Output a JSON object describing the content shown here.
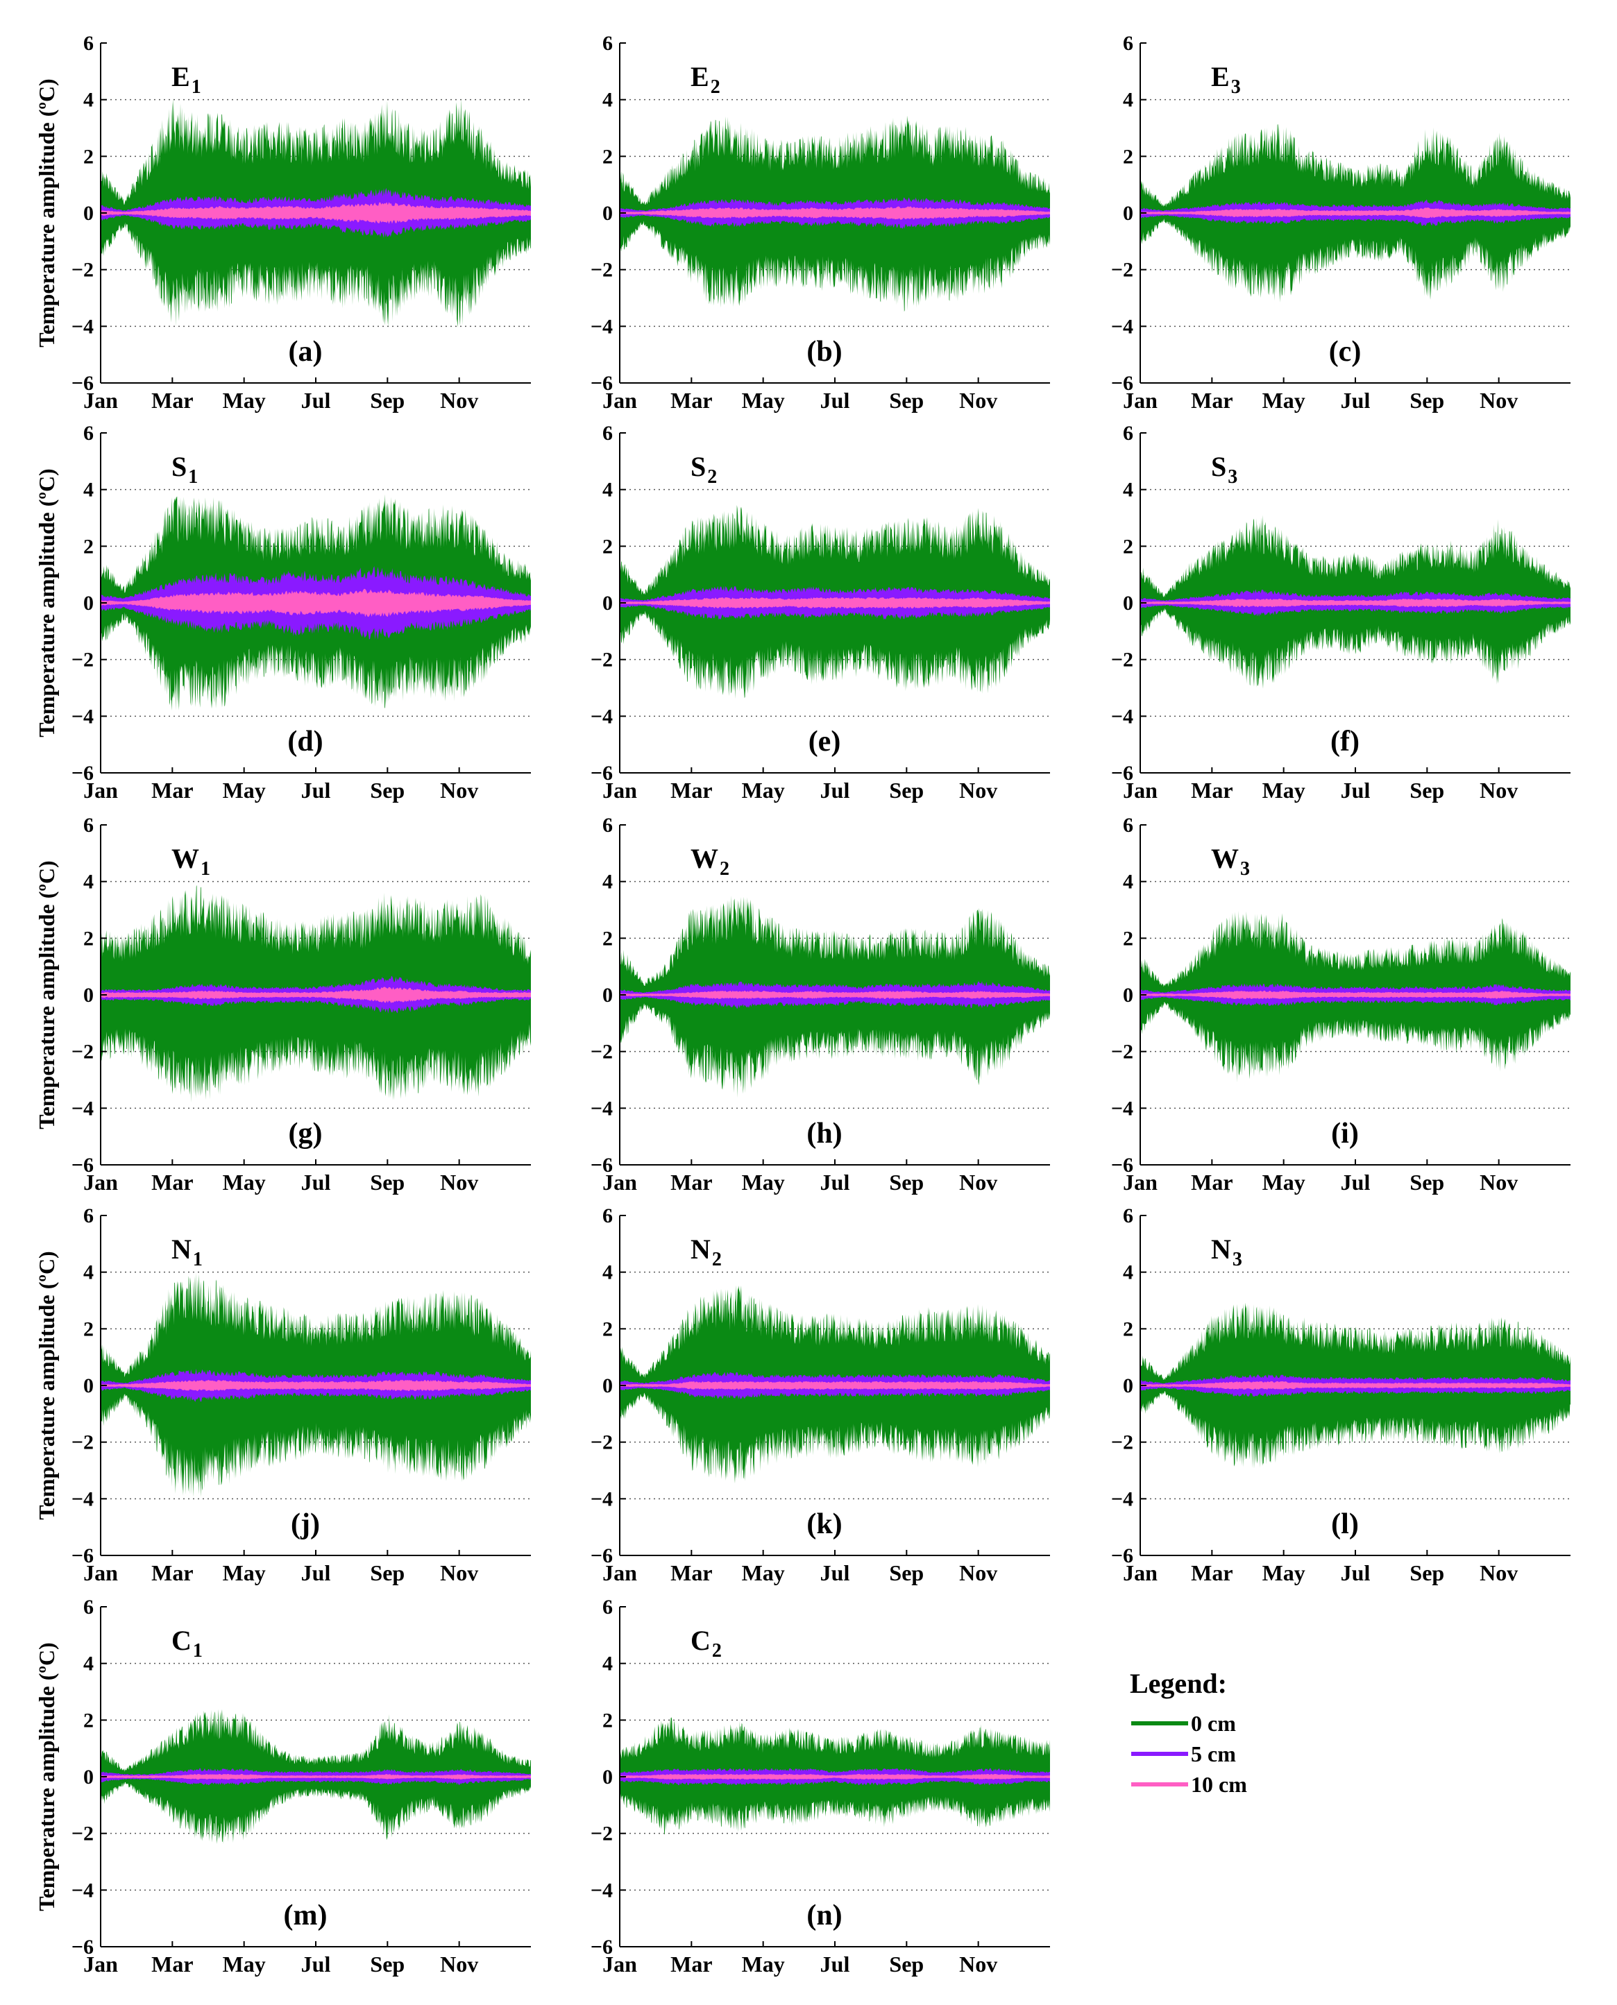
{
  "chart_data": {
    "type": "area",
    "shared": {
      "ylabel": "Temperature amplitude (ºC)",
      "ylim": [
        -6,
        6
      ],
      "yticks": [
        "−6",
        "−4",
        "−2",
        "0",
        "2",
        "4",
        "6"
      ],
      "months": [
        "Jan",
        "Mar",
        "May",
        "Jul",
        "Sep",
        "Nov"
      ],
      "series_names": [
        "0 cm",
        "5 cm",
        "10 cm"
      ],
      "colors": {
        "0 cm": "#0a8a14",
        "5 cm": "#8a1aff",
        "10 cm": "#ff5ec4"
      }
    },
    "legend": {
      "title": "Legend:",
      "items": [
        {
          "label": "0 cm",
          "color": "#0a8a14"
        },
        {
          "label": "5 cm",
          "color": "#8a1aff"
        },
        {
          "label": "10 cm",
          "color": "#ff5ec4"
        }
      ]
    },
    "panels": [
      {
        "id": "(a)",
        "station": "E",
        "sub": "1",
        "env0": [
          1.7,
          0.5,
          2.2,
          4.1,
          3.5,
          3.6,
          3.0,
          3.3,
          3.2,
          3.0,
          3.4,
          3.2,
          4.1,
          3.1,
          3.0,
          4.2,
          2.9,
          1.8,
          1.5
        ],
        "env5": [
          0.3,
          0.1,
          0.3,
          0.6,
          0.6,
          0.6,
          0.5,
          0.6,
          0.6,
          0.5,
          0.7,
          0.8,
          0.9,
          0.7,
          0.6,
          0.6,
          0.5,
          0.4,
          0.3
        ],
        "env10": [
          0.1,
          0.05,
          0.1,
          0.2,
          0.2,
          0.25,
          0.2,
          0.25,
          0.25,
          0.2,
          0.3,
          0.35,
          0.4,
          0.3,
          0.25,
          0.25,
          0.2,
          0.15,
          0.1
        ]
      },
      {
        "id": "(b)",
        "station": "E",
        "sub": "2",
        "env0": [
          1.6,
          0.4,
          1.5,
          2.5,
          3.5,
          3.3,
          2.7,
          2.6,
          2.8,
          2.7,
          3.0,
          3.2,
          3.6,
          3.0,
          3.2,
          2.9,
          2.7,
          1.5,
          1.2
        ],
        "env5": [
          0.2,
          0.1,
          0.2,
          0.4,
          0.5,
          0.5,
          0.4,
          0.4,
          0.5,
          0.4,
          0.5,
          0.5,
          0.6,
          0.5,
          0.5,
          0.4,
          0.4,
          0.3,
          0.2
        ],
        "env10": [
          0.05,
          0.05,
          0.1,
          0.15,
          0.2,
          0.2,
          0.15,
          0.15,
          0.2,
          0.15,
          0.2,
          0.2,
          0.25,
          0.2,
          0.2,
          0.15,
          0.15,
          0.1,
          0.05
        ]
      },
      {
        "id": "(c)",
        "station": "E",
        "sub": "3",
        "env0": [
          1.3,
          0.3,
          1.2,
          2.1,
          2.9,
          3.0,
          3.2,
          2.3,
          1.9,
          1.6,
          1.8,
          1.5,
          3.2,
          2.7,
          1.5,
          3.0,
          1.9,
          1.2,
          0.8
        ],
        "env5": [
          0.2,
          0.1,
          0.2,
          0.3,
          0.4,
          0.4,
          0.4,
          0.3,
          0.3,
          0.3,
          0.3,
          0.3,
          0.5,
          0.4,
          0.3,
          0.4,
          0.3,
          0.2,
          0.2
        ],
        "env10": [
          0.05,
          0.05,
          0.05,
          0.1,
          0.15,
          0.15,
          0.15,
          0.1,
          0.1,
          0.1,
          0.1,
          0.1,
          0.2,
          0.15,
          0.1,
          0.15,
          0.1,
          0.05,
          0.05
        ]
      },
      {
        "id": "(d)",
        "station": "S",
        "sub": "1",
        "env0": [
          1.6,
          0.6,
          2.0,
          3.9,
          3.7,
          3.8,
          3.0,
          2.6,
          2.7,
          3.2,
          2.8,
          3.5,
          3.9,
          3.3,
          3.5,
          3.5,
          2.8,
          1.7,
          1.3
        ],
        "env5": [
          0.3,
          0.2,
          0.5,
          0.8,
          1.0,
          1.1,
          1.0,
          0.9,
          1.2,
          1.1,
          1.0,
          1.3,
          1.3,
          1.0,
          1.0,
          0.9,
          0.7,
          0.5,
          0.3
        ],
        "env10": [
          0.1,
          0.05,
          0.15,
          0.3,
          0.35,
          0.4,
          0.4,
          0.35,
          0.45,
          0.4,
          0.35,
          0.5,
          0.5,
          0.4,
          0.35,
          0.3,
          0.25,
          0.15,
          0.1
        ]
      },
      {
        "id": "(e)",
        "station": "S",
        "sub": "2",
        "env0": [
          1.7,
          0.4,
          1.6,
          3.1,
          3.2,
          3.5,
          2.9,
          2.4,
          2.9,
          2.8,
          2.6,
          2.8,
          3.2,
          3.0,
          2.7,
          3.5,
          2.9,
          1.5,
          1.0
        ],
        "env5": [
          0.2,
          0.1,
          0.3,
          0.5,
          0.6,
          0.6,
          0.5,
          0.5,
          0.6,
          0.5,
          0.5,
          0.6,
          0.6,
          0.5,
          0.5,
          0.5,
          0.4,
          0.3,
          0.2
        ],
        "env10": [
          0.05,
          0.05,
          0.1,
          0.15,
          0.2,
          0.2,
          0.2,
          0.15,
          0.2,
          0.2,
          0.2,
          0.2,
          0.2,
          0.2,
          0.15,
          0.2,
          0.15,
          0.1,
          0.05
        ]
      },
      {
        "id": "(f)",
        "station": "S",
        "sub": "3",
        "env0": [
          1.4,
          0.3,
          1.4,
          2.1,
          2.6,
          3.2,
          2.6,
          1.8,
          1.6,
          1.9,
          1.4,
          1.9,
          2.2,
          2.2,
          1.9,
          3.0,
          2.2,
          1.3,
          0.8
        ],
        "env5": [
          0.2,
          0.1,
          0.2,
          0.3,
          0.4,
          0.5,
          0.4,
          0.3,
          0.3,
          0.3,
          0.3,
          0.4,
          0.4,
          0.4,
          0.3,
          0.4,
          0.3,
          0.2,
          0.2
        ],
        "env10": [
          0.05,
          0.05,
          0.05,
          0.1,
          0.15,
          0.15,
          0.15,
          0.1,
          0.1,
          0.1,
          0.1,
          0.15,
          0.15,
          0.15,
          0.1,
          0.15,
          0.1,
          0.05,
          0.05
        ]
      },
      {
        "id": "(g)",
        "station": "W",
        "sub": "1",
        "env0": [
          2.4,
          2.1,
          2.7,
          3.5,
          3.9,
          3.6,
          3.2,
          2.9,
          2.6,
          2.7,
          3.0,
          2.9,
          3.8,
          3.6,
          3.2,
          3.6,
          3.6,
          2.7,
          1.8
        ],
        "env5": [
          0.2,
          0.2,
          0.2,
          0.3,
          0.4,
          0.4,
          0.3,
          0.3,
          0.3,
          0.3,
          0.4,
          0.5,
          0.7,
          0.6,
          0.4,
          0.4,
          0.3,
          0.2,
          0.2
        ],
        "env10": [
          0.1,
          0.1,
          0.1,
          0.1,
          0.15,
          0.15,
          0.1,
          0.1,
          0.1,
          0.1,
          0.15,
          0.2,
          0.3,
          0.25,
          0.15,
          0.15,
          0.1,
          0.1,
          0.1
        ]
      },
      {
        "id": "(h)",
        "station": "W",
        "sub": "2",
        "env0": [
          1.9,
          0.5,
          1.2,
          3.1,
          3.2,
          3.7,
          3.0,
          2.4,
          2.3,
          2.3,
          2.1,
          2.2,
          2.4,
          2.3,
          2.2,
          3.2,
          2.7,
          1.5,
          1.0
        ],
        "env5": [
          0.2,
          0.1,
          0.2,
          0.4,
          0.4,
          0.5,
          0.4,
          0.4,
          0.4,
          0.4,
          0.3,
          0.4,
          0.4,
          0.4,
          0.4,
          0.5,
          0.4,
          0.3,
          0.2
        ],
        "env10": [
          0.05,
          0.05,
          0.05,
          0.1,
          0.15,
          0.15,
          0.15,
          0.1,
          0.15,
          0.1,
          0.1,
          0.15,
          0.15,
          0.1,
          0.1,
          0.15,
          0.1,
          0.1,
          0.05
        ]
      },
      {
        "id": "(i)",
        "station": "W",
        "sub": "3",
        "env0": [
          1.5,
          0.4,
          1.1,
          2.3,
          3.1,
          2.9,
          2.9,
          1.8,
          1.6,
          1.5,
          1.7,
          1.7,
          1.9,
          2.1,
          1.9,
          2.8,
          2.3,
          1.4,
          0.9
        ],
        "env5": [
          0.2,
          0.1,
          0.2,
          0.3,
          0.4,
          0.4,
          0.4,
          0.3,
          0.3,
          0.3,
          0.3,
          0.3,
          0.3,
          0.3,
          0.3,
          0.4,
          0.3,
          0.2,
          0.2
        ],
        "env10": [
          0.05,
          0.05,
          0.05,
          0.1,
          0.15,
          0.15,
          0.15,
          0.1,
          0.1,
          0.1,
          0.1,
          0.1,
          0.1,
          0.1,
          0.1,
          0.15,
          0.1,
          0.05,
          0.05
        ]
      },
      {
        "id": "(j)",
        "station": "N",
        "sub": "1",
        "env0": [
          1.6,
          0.5,
          1.6,
          3.8,
          4.0,
          3.7,
          3.2,
          2.9,
          2.7,
          2.4,
          2.6,
          2.6,
          3.1,
          3.2,
          3.3,
          3.5,
          3.0,
          2.2,
          1.4
        ],
        "env5": [
          0.2,
          0.1,
          0.3,
          0.5,
          0.6,
          0.5,
          0.5,
          0.4,
          0.4,
          0.4,
          0.4,
          0.4,
          0.5,
          0.5,
          0.5,
          0.4,
          0.4,
          0.3,
          0.2
        ],
        "env10": [
          0.05,
          0.05,
          0.1,
          0.15,
          0.2,
          0.2,
          0.15,
          0.15,
          0.15,
          0.15,
          0.15,
          0.15,
          0.2,
          0.2,
          0.2,
          0.15,
          0.15,
          0.1,
          0.05
        ]
      },
      {
        "id": "(k)",
        "station": "N",
        "sub": "2",
        "env0": [
          1.5,
          0.4,
          1.5,
          3.0,
          3.4,
          3.6,
          3.0,
          2.7,
          2.5,
          2.6,
          2.4,
          2.3,
          2.6,
          2.8,
          2.7,
          2.9,
          2.6,
          2.0,
          1.2
        ],
        "env5": [
          0.2,
          0.1,
          0.2,
          0.4,
          0.5,
          0.5,
          0.4,
          0.4,
          0.4,
          0.4,
          0.4,
          0.4,
          0.4,
          0.4,
          0.4,
          0.4,
          0.4,
          0.3,
          0.2
        ],
        "env10": [
          0.05,
          0.05,
          0.05,
          0.15,
          0.15,
          0.15,
          0.15,
          0.15,
          0.15,
          0.15,
          0.15,
          0.15,
          0.15,
          0.15,
          0.15,
          0.15,
          0.15,
          0.1,
          0.05
        ]
      },
      {
        "id": "(l)",
        "station": "N",
        "sub": "3",
        "env0": [
          1.2,
          0.3,
          1.3,
          2.5,
          2.9,
          3.0,
          2.6,
          2.4,
          2.2,
          2.1,
          2.0,
          2.0,
          2.1,
          2.3,
          2.2,
          2.5,
          2.2,
          1.8,
          1.1
        ],
        "env5": [
          0.2,
          0.1,
          0.2,
          0.3,
          0.4,
          0.4,
          0.4,
          0.3,
          0.3,
          0.3,
          0.3,
          0.3,
          0.3,
          0.3,
          0.3,
          0.3,
          0.3,
          0.3,
          0.2
        ],
        "env10": [
          0.05,
          0.05,
          0.05,
          0.1,
          0.15,
          0.15,
          0.15,
          0.1,
          0.1,
          0.1,
          0.1,
          0.1,
          0.1,
          0.1,
          0.1,
          0.1,
          0.1,
          0.1,
          0.05
        ]
      },
      {
        "id": "(m)",
        "station": "C",
        "sub": "1",
        "env0": [
          1.1,
          0.3,
          0.9,
          1.6,
          2.3,
          2.4,
          2.3,
          1.3,
          0.8,
          0.7,
          0.8,
          0.9,
          2.3,
          1.5,
          1.2,
          2.0,
          1.6,
          0.8,
          0.6
        ],
        "env5": [
          0.2,
          0.1,
          0.1,
          0.2,
          0.3,
          0.3,
          0.3,
          0.2,
          0.2,
          0.2,
          0.2,
          0.2,
          0.3,
          0.2,
          0.2,
          0.3,
          0.2,
          0.2,
          0.1
        ],
        "env10": [
          0.05,
          0.05,
          0.05,
          0.05,
          0.1,
          0.1,
          0.1,
          0.05,
          0.05,
          0.05,
          0.05,
          0.05,
          0.1,
          0.05,
          0.05,
          0.1,
          0.05,
          0.05,
          0.05
        ]
      },
      {
        "id": "(n)",
        "station": "C",
        "sub": "2",
        "env0": [
          1.0,
          1.4,
          2.2,
          1.6,
          1.7,
          2.0,
          1.5,
          1.8,
          1.6,
          1.4,
          1.5,
          1.8,
          1.5,
          1.2,
          1.3,
          1.9,
          1.6,
          1.4,
          1.3
        ],
        "env5": [
          0.2,
          0.2,
          0.3,
          0.3,
          0.3,
          0.3,
          0.3,
          0.3,
          0.3,
          0.2,
          0.3,
          0.3,
          0.3,
          0.2,
          0.2,
          0.3,
          0.3,
          0.2,
          0.2
        ],
        "env10": [
          0.05,
          0.05,
          0.1,
          0.1,
          0.1,
          0.1,
          0.1,
          0.1,
          0.1,
          0.05,
          0.1,
          0.1,
          0.1,
          0.05,
          0.05,
          0.1,
          0.1,
          0.05,
          0.05
        ]
      }
    ]
  }
}
